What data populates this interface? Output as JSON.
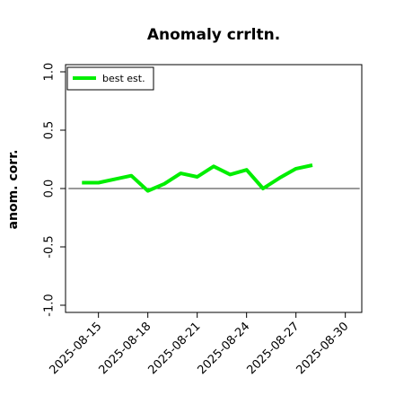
{
  "chart_data": {
    "type": "line",
    "title": "Anomaly crrltn.",
    "xlabel": "",
    "ylabel": "anom. corr.",
    "ylim": [
      -1.0,
      1.0
    ],
    "xlim": [
      "2025-08-13",
      "2025-08-31"
    ],
    "yticks": [
      "-1.0",
      "-0.5",
      "0.0",
      "0.5",
      "1.0"
    ],
    "xticks": [
      "2025-08-15",
      "2025-08-18",
      "2025-08-21",
      "2025-08-24",
      "2025-08-27",
      "2025-08-30"
    ],
    "legend_position": "top-left",
    "grid": false,
    "reference_line": 0.0,
    "series": [
      {
        "name": "best est.",
        "color": "#00ee00",
        "x": [
          "2025-08-14",
          "2025-08-15",
          "2025-08-16",
          "2025-08-17",
          "2025-08-18",
          "2025-08-19",
          "2025-08-20",
          "2025-08-21",
          "2025-08-22",
          "2025-08-23",
          "2025-08-24",
          "2025-08-25",
          "2025-08-26",
          "2025-08-27",
          "2025-08-28"
        ],
        "values": [
          0.05,
          0.05,
          0.08,
          0.11,
          -0.02,
          0.04,
          0.13,
          0.1,
          0.19,
          0.12,
          0.16,
          0.0,
          0.09,
          0.17,
          0.2
        ]
      }
    ]
  }
}
